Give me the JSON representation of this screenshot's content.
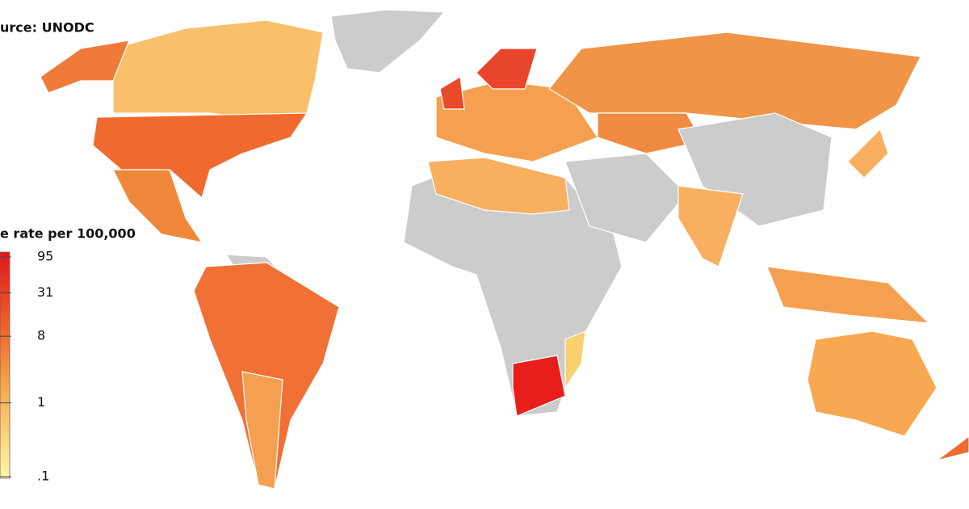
{
  "source": "urce: UNODC",
  "legend": {
    "title": "e rate per 100,000",
    "ticks": [
      95,
      31,
      8,
      1,
      {
        "value": 0.1,
        "label": ".1"
      }
    ]
  }
}
